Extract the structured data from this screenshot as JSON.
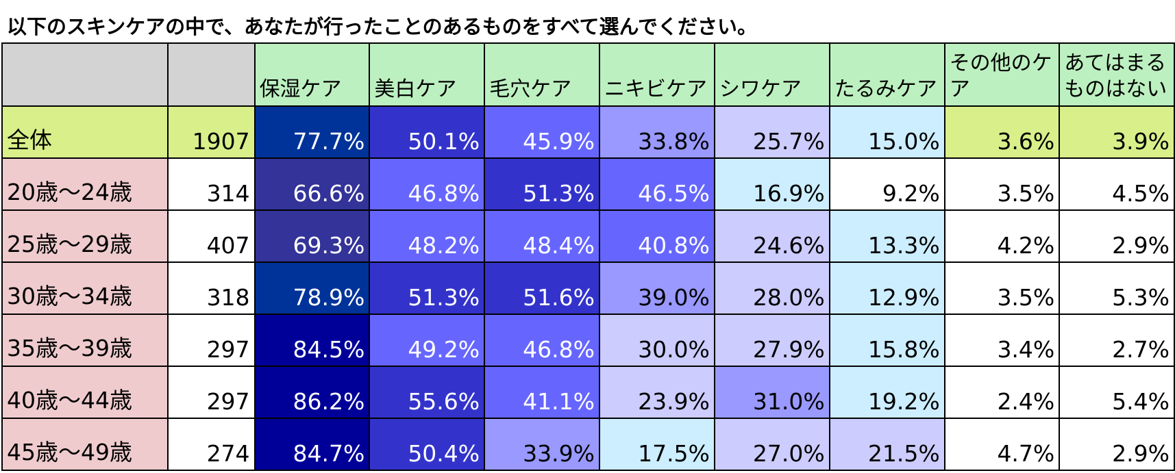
{
  "title": "以下のスキンケアの中で、あなたが行ったことのあるものをすべて選んでください。",
  "chart_data": {
    "type": "table",
    "columns": [
      "保湿ケア",
      "美白ケア",
      "毛穴ケア",
      "ニキビケア",
      "シワケア",
      "たるみケア",
      "その他のケア",
      "あてはまるものはない"
    ],
    "rows": [
      {
        "label": "全体",
        "n": "1907",
        "values": [
          "77.7%",
          "50.1%",
          "45.9%",
          "33.8%",
          "25.7%",
          "15.0%",
          "3.6%",
          "3.9%"
        ],
        "colors": [
          "#003399",
          "#3333cc",
          "#6666ff",
          "#9999ff",
          "#ccccff",
          "#cceeff",
          "#d9ef8a",
          "#d9ef8a"
        ]
      },
      {
        "label": "20歳～24歳",
        "n": "314",
        "values": [
          "66.6%",
          "46.8%",
          "51.3%",
          "46.5%",
          "16.9%",
          "9.2%",
          "3.5%",
          "4.5%"
        ],
        "colors": [
          "#333399",
          "#6666ff",
          "#3333cc",
          "#6666ff",
          "#cceeff",
          "#ffffff",
          "#ffffff",
          "#ffffff"
        ]
      },
      {
        "label": "25歳～29歳",
        "n": "407",
        "values": [
          "69.3%",
          "48.2%",
          "48.4%",
          "40.8%",
          "24.6%",
          "13.3%",
          "4.2%",
          "2.9%"
        ],
        "colors": [
          "#333399",
          "#6666ff",
          "#6666ff",
          "#6666ff",
          "#ccccff",
          "#cceeff",
          "#ffffff",
          "#ffffff"
        ]
      },
      {
        "label": "30歳～34歳",
        "n": "318",
        "values": [
          "78.9%",
          "51.3%",
          "51.6%",
          "39.0%",
          "28.0%",
          "12.9%",
          "3.5%",
          "5.3%"
        ],
        "colors": [
          "#003399",
          "#3333cc",
          "#3333cc",
          "#9999ff",
          "#ccccff",
          "#cceeff",
          "#ffffff",
          "#ffffff"
        ]
      },
      {
        "label": "35歳～39歳",
        "n": "297",
        "values": [
          "84.5%",
          "49.2%",
          "46.8%",
          "30.0%",
          "27.9%",
          "15.8%",
          "3.4%",
          "2.7%"
        ],
        "colors": [
          "#000099",
          "#6666ff",
          "#6666ff",
          "#ccccff",
          "#ccccff",
          "#cceeff",
          "#ffffff",
          "#ffffff"
        ]
      },
      {
        "label": "40歳～44歳",
        "n": "297",
        "values": [
          "86.2%",
          "55.6%",
          "41.1%",
          "23.9%",
          "31.0%",
          "19.2%",
          "2.4%",
          "5.4%"
        ],
        "colors": [
          "#000099",
          "#3333cc",
          "#6666ff",
          "#ccccff",
          "#9999ff",
          "#cceeff",
          "#ffffff",
          "#ffffff"
        ]
      },
      {
        "label": "45歳～49歳",
        "n": "274",
        "values": [
          "84.7%",
          "50.4%",
          "33.9%",
          "17.5%",
          "27.0%",
          "21.5%",
          "4.7%",
          "2.9%"
        ],
        "colors": [
          "#000099",
          "#3333cc",
          "#9999ff",
          "#cceeff",
          "#ccccff",
          "#ccccff",
          "#ffffff",
          "#ffffff"
        ]
      }
    ]
  },
  "colors": {
    "header_green": "#bdf0c0",
    "header_gray": "#d3d3d3",
    "age_label": "#efcbce",
    "total_row": "#d9ef8a"
  }
}
